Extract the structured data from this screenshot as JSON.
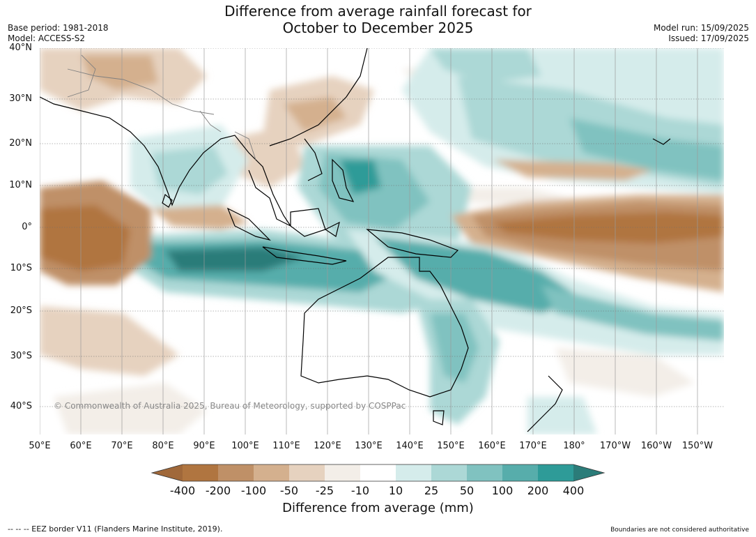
{
  "title": {
    "line1": "Difference from average rainfall forecast for",
    "line2": "October to December 2025"
  },
  "meta_left": {
    "base_period": "Base period: 1981-2018",
    "model": "Model: ACCESS-S2"
  },
  "meta_right": {
    "model_run": "Model run: 15/09/2025",
    "issued": "Issued: 17/09/2025"
  },
  "lat_labels": [
    "40°N",
    "30°N",
    "20°N",
    "10°N",
    "0°",
    "10°S",
    "20°S",
    "30°S",
    "40°S"
  ],
  "lon_labels": [
    "50°E",
    "60°E",
    "70°E",
    "80°E",
    "90°E",
    "100°E",
    "110°E",
    "120°E",
    "130°E",
    "140°E",
    "150°E",
    "160°E",
    "170°E",
    "180°",
    "170°W",
    "160°W",
    "150°W"
  ],
  "copyright": "© Commonwealth of Australia 2025, Bureau of Meteorology, supported by COSPPac",
  "colorbar": {
    "ticks": [
      "-400",
      "-200",
      "-100",
      "-50",
      "-25",
      "-10",
      "10",
      "25",
      "50",
      "100",
      "200",
      "400"
    ],
    "colors": [
      "#a0683a",
      "#b07540",
      "#bf9067",
      "#d4b08e",
      "#e6d2bf",
      "#f3eee8",
      "#ffffff",
      "#d5eceb",
      "#acd8d6",
      "#80c2c0",
      "#57adab",
      "#2e9b98",
      "#2b7c79"
    ],
    "title": "Difference from average (mm)"
  },
  "footer": {
    "eez": "--  --  -- EEZ border V11 (Flanders Marine Institute, 2019).",
    "disclaimer": "Boundaries are not considered authoritative"
  }
}
